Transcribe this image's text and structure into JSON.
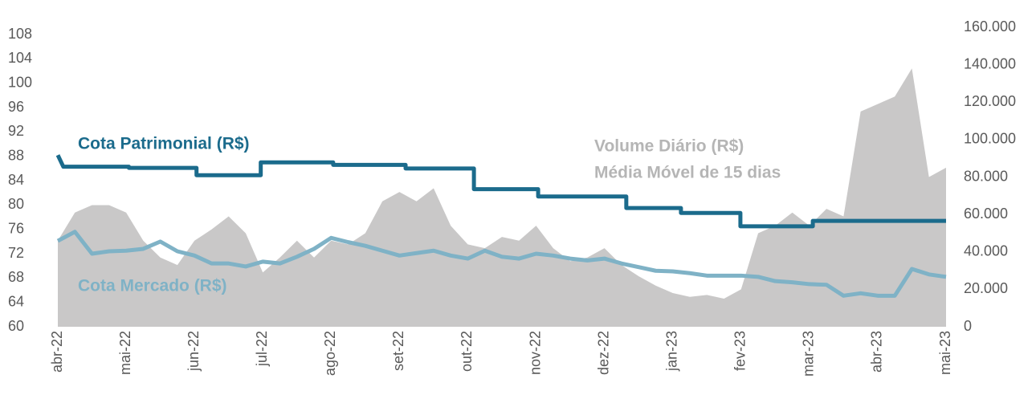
{
  "chart_data": {
    "type": "line",
    "xlim": [
      0,
      13
    ],
    "xticks": [
      {
        "value": 0,
        "label": "abr-22"
      },
      {
        "value": 1,
        "label": "mai-22"
      },
      {
        "value": 2,
        "label": "jun-22"
      },
      {
        "value": 3,
        "label": "jul-22"
      },
      {
        "value": 4,
        "label": "ago-22"
      },
      {
        "value": 5,
        "label": "set-22"
      },
      {
        "value": 6,
        "label": "out-22"
      },
      {
        "value": 7,
        "label": "nov-22"
      },
      {
        "value": 8,
        "label": "dez-22"
      },
      {
        "value": 9,
        "label": "jan-23"
      },
      {
        "value": 10,
        "label": "fev-23"
      },
      {
        "value": 11,
        "label": "mar-23"
      },
      {
        "value": 12,
        "label": "abr-23"
      },
      {
        "value": 13,
        "label": "mai-23"
      }
    ],
    "ylim": [
      60,
      109.2
    ],
    "yticks": [
      60,
      64,
      68,
      72,
      76,
      80,
      84,
      88,
      92,
      96,
      100,
      104,
      108
    ],
    "y2lim": [
      0,
      160000
    ],
    "y2ticks": [
      0,
      {
        "value": 20000,
        "label": "20.000"
      },
      {
        "value": 40000,
        "label": "40.000"
      },
      {
        "value": 60000,
        "label": "60.000"
      },
      {
        "value": 80000,
        "label": "80.000"
      },
      {
        "value": 100000,
        "label": "100.000"
      },
      {
        "value": 120000,
        "label": "120.000"
      },
      {
        "value": 140000,
        "label": "140.000"
      },
      {
        "value": 160000,
        "label": "160.000"
      }
    ],
    "annotation": "Média Móvel de 15 dias",
    "series": [
      {
        "name": "Volume Diário (R$)",
        "color": "#c9c8c8",
        "axis": "y2",
        "kind": "area",
        "x": [
          0,
          0.25,
          0.5,
          0.75,
          1,
          1.25,
          1.5,
          1.75,
          2,
          2.25,
          2.5,
          2.75,
          3,
          3.25,
          3.5,
          3.75,
          4,
          4.25,
          4.5,
          4.75,
          5,
          5.25,
          5.5,
          5.75,
          6,
          6.25,
          6.5,
          6.75,
          7,
          7.25,
          7.5,
          7.75,
          8,
          8.25,
          8.5,
          8.75,
          9,
          9.25,
          9.5,
          9.75,
          10,
          10.25,
          10.5,
          10.75,
          11,
          11.25,
          11.5,
          11.75,
          12,
          12.25,
          12.5,
          12.75,
          13
        ],
        "values": [
          46000,
          61000,
          65000,
          65000,
          61000,
          46000,
          37000,
          33000,
          46000,
          52000,
          59000,
          50000,
          29000,
          37000,
          46000,
          37000,
          46000,
          44000,
          50000,
          67000,
          72000,
          67000,
          74000,
          54000,
          44000,
          42000,
          48000,
          46000,
          54000,
          42000,
          35000,
          37000,
          42000,
          33000,
          27000,
          22000,
          18000,
          16000,
          17000,
          15000,
          20000,
          50000,
          54000,
          61000,
          54000,
          63000,
          59000,
          115000,
          119000,
          123000,
          138000,
          80000,
          85000
        ]
      },
      {
        "name": "Cota Patrimonial (R$)",
        "color": "#1b6b8c",
        "axis": "y",
        "kind": "line",
        "x": [
          0,
          0.08,
          1.04,
          1.04,
          2.03,
          2.03,
          2.97,
          2.97,
          4.03,
          4.03,
          5.09,
          5.09,
          6.09,
          6.09,
          7.03,
          7.03,
          8.32,
          8.32,
          9.12,
          9.12,
          9.99,
          9.99,
          11.05,
          11.05,
          13
        ],
        "values": [
          88.2,
          86.3,
          86.3,
          86.1,
          86.1,
          84.9,
          84.9,
          87.0,
          87.0,
          86.6,
          86.6,
          86.0,
          86.0,
          82.6,
          82.6,
          81.4,
          81.4,
          79.5,
          79.5,
          78.7,
          78.7,
          76.5,
          76.5,
          77.4,
          77.4
        ]
      },
      {
        "name": "Cota Mercado (R$)",
        "color": "#7fb2c6",
        "axis": "y",
        "kind": "line",
        "x": [
          0,
          0.25,
          0.5,
          0.75,
          1,
          1.25,
          1.5,
          1.75,
          2,
          2.25,
          2.5,
          2.75,
          3,
          3.25,
          3.5,
          3.75,
          4,
          4.25,
          4.5,
          4.75,
          5,
          5.25,
          5.5,
          5.75,
          6,
          6.25,
          6.5,
          6.75,
          7,
          7.25,
          7.5,
          7.75,
          8,
          8.25,
          8.5,
          8.75,
          9,
          9.25,
          9.5,
          9.75,
          10,
          10.25,
          10.5,
          10.75,
          11,
          11.25,
          11.5,
          11.75,
          12,
          12.25,
          12.5,
          12.75,
          13
        ],
        "values": [
          74.1,
          75.6,
          72.0,
          72.4,
          72.5,
          72.8,
          74.0,
          72.4,
          71.7,
          70.4,
          70.4,
          69.9,
          70.7,
          70.4,
          71.5,
          72.8,
          74.6,
          73.9,
          73.3,
          72.5,
          71.7,
          72.1,
          72.5,
          71.7,
          71.2,
          72.5,
          71.5,
          71.2,
          72.0,
          71.7,
          71.2,
          70.9,
          71.2,
          70.4,
          69.8,
          69.2,
          69.1,
          68.8,
          68.4,
          68.4,
          68.4,
          68.2,
          67.5,
          67.3,
          67.0,
          66.9,
          65.1,
          65.5,
          65.1,
          65.1,
          69.5,
          68.6,
          68.2
        ]
      }
    ]
  }
}
